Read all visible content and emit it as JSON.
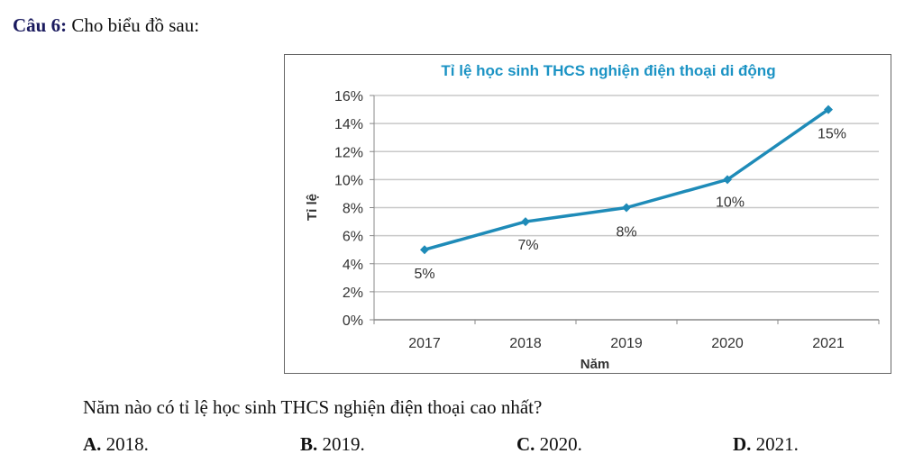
{
  "question": {
    "label": "Câu 6:",
    "intro": "Cho biểu đồ sau:",
    "text": "Năm nào có tỉ lệ học sinh THCS nghiện điện thoại cao nhất?",
    "options": [
      {
        "key": "A.",
        "text": "2018."
      },
      {
        "key": "B.",
        "text": "2019."
      },
      {
        "key": "C.",
        "text": "2020."
      },
      {
        "key": "D.",
        "text": "2021."
      }
    ]
  },
  "colors": {
    "series": "#1e8bb8",
    "title": "#1b93c4",
    "grid": "#c8c8c8",
    "text": "#333333"
  },
  "chart_data": {
    "type": "line",
    "title": "Tỉ lệ học sinh THCS nghiện điện thoại di động",
    "xlabel": "Năm",
    "ylabel": "Tỉ lệ",
    "categories": [
      "2017",
      "2018",
      "2019",
      "2020",
      "2021"
    ],
    "series": [
      {
        "name": "Tỉ lệ",
        "values": [
          5,
          7,
          8,
          10,
          15
        ]
      }
    ],
    "data_labels": [
      "5%",
      "7%",
      "8%",
      "10%",
      "15%"
    ],
    "ylim": [
      0,
      16
    ],
    "yticks": [
      0,
      2,
      4,
      6,
      8,
      10,
      12,
      14,
      16
    ],
    "ytick_labels": [
      "0%",
      "2%",
      "4%",
      "6%",
      "8%",
      "10%",
      "12%",
      "14%",
      "16%"
    ],
    "grid": true,
    "legend": "none"
  }
}
